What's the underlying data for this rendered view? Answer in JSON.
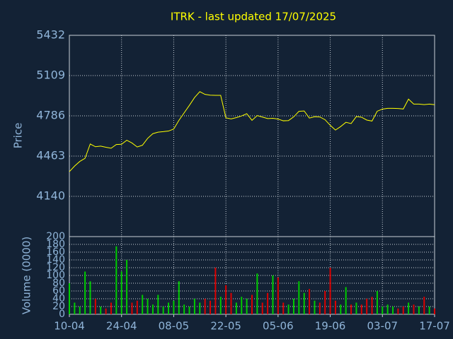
{
  "chart_data": [
    {
      "type": "line",
      "title": "ITRK - last updated 17/07/2025",
      "ylabel": "Price",
      "color": "#ffff00",
      "x": [
        0,
        1,
        2,
        3,
        4,
        5,
        6,
        7,
        8,
        9,
        10,
        11,
        12,
        13,
        14,
        15,
        16,
        17,
        18,
        19,
        20,
        21,
        22,
        23,
        24,
        25,
        26,
        27,
        28,
        29,
        30,
        31,
        32,
        33,
        34,
        35,
        36,
        37,
        38,
        39,
        40,
        41,
        42,
        43,
        44,
        45,
        46,
        47,
        48,
        49,
        50,
        51,
        52,
        53,
        54,
        55,
        56,
        57,
        58,
        59,
        60,
        61,
        62,
        63,
        64,
        65,
        66,
        67,
        68,
        69,
        70
      ],
      "values": [
        4338,
        4383,
        4420,
        4445,
        4560,
        4538,
        4543,
        4534,
        4526,
        4556,
        4558,
        4590,
        4568,
        4536,
        4550,
        4605,
        4643,
        4655,
        4659,
        4664,
        4680,
        4750,
        4810,
        4870,
        4933,
        4980,
        4958,
        4952,
        4950,
        4950,
        4770,
        4761,
        4772,
        4785,
        4803,
        4750,
        4788,
        4776,
        4764,
        4766,
        4760,
        4746,
        4748,
        4778,
        4822,
        4825,
        4768,
        4779,
        4777,
        4755,
        4710,
        4672,
        4700,
        4734,
        4724,
        4780,
        4775,
        4752,
        4744,
        4823,
        4840,
        4846,
        4846,
        4845,
        4841,
        4920,
        4880,
        4880,
        4876,
        4880,
        4875
      ],
      "xlim": [
        0,
        70
      ],
      "ylim": [
        3817,
        5432
      ],
      "yticks": [
        4140,
        4463,
        4786,
        5109,
        5432
      ],
      "grid": true
    },
    {
      "type": "bar",
      "ylabel": "Volume (0000)",
      "up_color": "#00cc00",
      "down_color": "#dd0000",
      "x": [
        0,
        1,
        2,
        3,
        4,
        5,
        6,
        7,
        8,
        9,
        10,
        11,
        12,
        13,
        14,
        15,
        16,
        17,
        18,
        19,
        20,
        21,
        22,
        23,
        24,
        25,
        26,
        27,
        28,
        29,
        30,
        31,
        32,
        33,
        34,
        35,
        36,
        37,
        38,
        39,
        40,
        41,
        42,
        43,
        44,
        45,
        46,
        47,
        48,
        49,
        50,
        51,
        52,
        53,
        54,
        55,
        56,
        57,
        58,
        59,
        60,
        61,
        62,
        63,
        64,
        65,
        66,
        67,
        68,
        69,
        70
      ],
      "values": [
        80,
        30,
        20,
        110,
        85,
        40,
        20,
        15,
        30,
        175,
        110,
        140,
        30,
        35,
        50,
        40,
        25,
        50,
        20,
        30,
        35,
        85,
        25,
        20,
        40,
        30,
        40,
        35,
        120,
        45,
        75,
        55,
        30,
        45,
        40,
        50,
        105,
        30,
        55,
        100,
        95,
        30,
        25,
        40,
        85,
        55,
        65,
        35,
        30,
        60,
        120,
        35,
        25,
        70,
        25,
        30,
        25,
        40,
        45,
        60,
        20,
        25,
        20,
        15,
        20,
        30,
        25,
        20,
        45,
        20,
        15
      ],
      "xlim": [
        0,
        70
      ],
      "xticks": [
        {
          "value": 0,
          "label": "10-04"
        },
        {
          "value": 10,
          "label": "24-04"
        },
        {
          "value": 20,
          "label": "08-05"
        },
        {
          "value": 30,
          "label": "22-05"
        },
        {
          "value": 40,
          "label": "05-06"
        },
        {
          "value": 50,
          "label": "19-06"
        },
        {
          "value": 60,
          "label": "03-07"
        },
        {
          "value": 70,
          "label": "17-07"
        }
      ],
      "ylim": [
        0,
        200
      ],
      "yticks": [
        0,
        20,
        40,
        60,
        80,
        100,
        120,
        140,
        160,
        180,
        200
      ],
      "grid": true
    }
  ]
}
